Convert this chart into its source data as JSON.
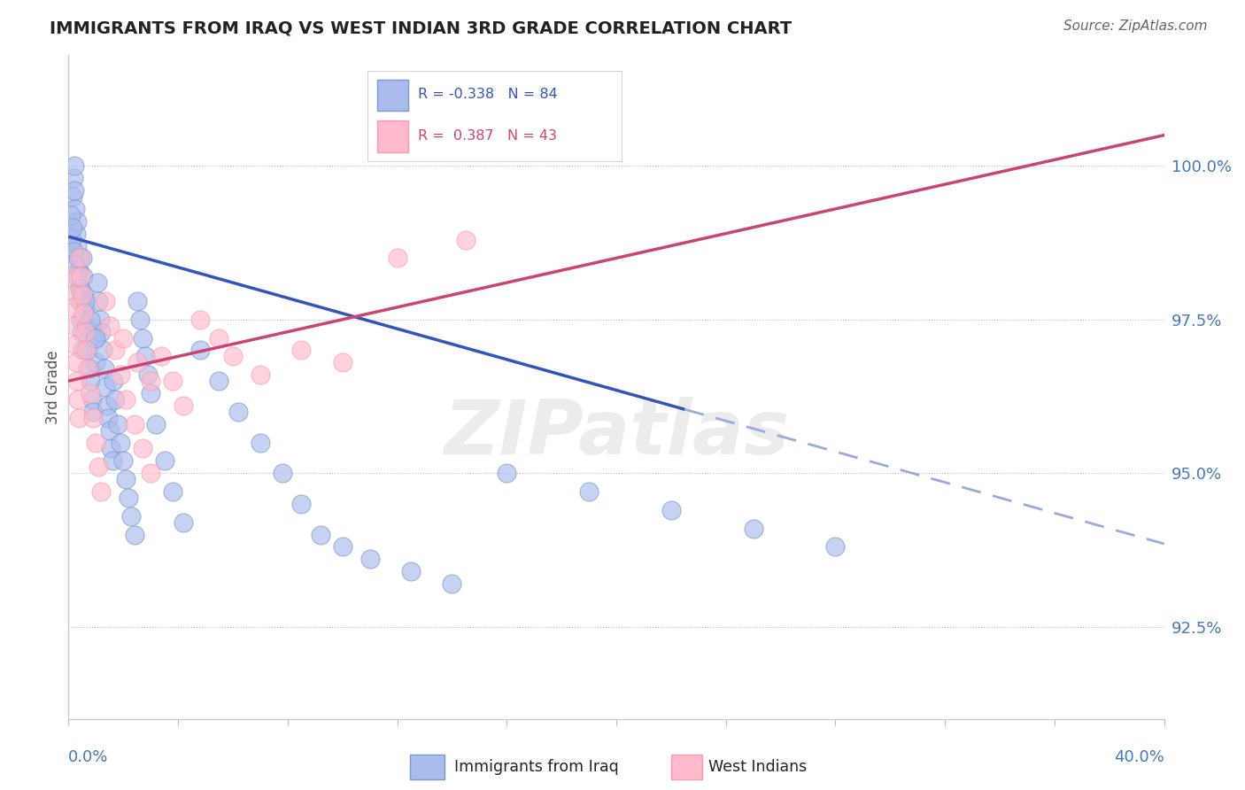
{
  "title": "IMMIGRANTS FROM IRAQ VS WEST INDIAN 3RD GRADE CORRELATION CHART",
  "source": "Source: ZipAtlas.com",
  "ylabel": "3rd Grade",
  "yticks": [
    92.5,
    95.0,
    97.5,
    100.0
  ],
  "ytick_labels": [
    "92.5%",
    "95.0%",
    "97.5%",
    "100.0%"
  ],
  "xmin": 0.0,
  "xmax": 40.0,
  "ymin": 91.0,
  "ymax": 101.8,
  "watermark": "ZIPatlas",
  "iraq_color_face": "#AABBEE",
  "iraq_color_edge": "#7799CC",
  "wi_color_face": "#FFBBCC",
  "wi_color_edge": "#FF99AA",
  "iraq_R": "-0.338",
  "iraq_N": "84",
  "wi_R": "0.387",
  "wi_N": "43",
  "iraq_legend_label": "Immigrants from Iraq",
  "wi_legend_label": "West Indians",
  "iraq_trend_color": "#3355BB",
  "iraq_trend_dash_color": "#99AADD",
  "wi_trend_color": "#CC4477",
  "iraq_x": [
    0.15,
    0.18,
    0.2,
    0.22,
    0.25,
    0.28,
    0.3,
    0.32,
    0.35,
    0.38,
    0.4,
    0.42,
    0.45,
    0.48,
    0.5,
    0.52,
    0.55,
    0.58,
    0.6,
    0.65,
    0.7,
    0.75,
    0.8,
    0.85,
    0.9,
    0.95,
    1.0,
    1.05,
    1.1,
    1.15,
    1.2,
    1.25,
    1.3,
    1.35,
    1.4,
    1.45,
    1.5,
    1.55,
    1.6,
    1.65,
    1.7,
    1.8,
    1.9,
    2.0,
    2.1,
    2.2,
    2.3,
    2.4,
    2.5,
    2.6,
    2.7,
    2.8,
    2.9,
    3.0,
    3.2,
    3.5,
    3.8,
    4.2,
    4.8,
    5.5,
    6.2,
    7.0,
    7.8,
    8.5,
    9.2,
    10.0,
    11.0,
    12.5,
    14.0,
    16.0,
    19.0,
    22.0,
    25.0,
    28.0,
    0.1,
    0.12,
    0.15,
    0.18,
    0.22,
    0.3,
    0.4,
    0.6,
    0.8,
    1.0
  ],
  "iraq_y": [
    99.5,
    99.8,
    100.0,
    99.6,
    99.3,
    98.9,
    99.1,
    98.7,
    98.5,
    98.3,
    98.0,
    97.8,
    97.5,
    97.3,
    97.0,
    98.5,
    98.2,
    97.9,
    97.7,
    97.4,
    97.0,
    96.7,
    96.5,
    96.2,
    96.0,
    97.2,
    96.8,
    98.1,
    97.8,
    97.5,
    97.3,
    97.0,
    96.7,
    96.4,
    96.1,
    95.9,
    95.7,
    95.4,
    95.2,
    96.5,
    96.2,
    95.8,
    95.5,
    95.2,
    94.9,
    94.6,
    94.3,
    94.0,
    97.8,
    97.5,
    97.2,
    96.9,
    96.6,
    96.3,
    95.8,
    95.2,
    94.7,
    94.2,
    97.0,
    96.5,
    96.0,
    95.5,
    95.0,
    94.5,
    94.0,
    93.8,
    93.6,
    93.4,
    93.2,
    95.0,
    94.7,
    94.4,
    94.1,
    93.8,
    99.2,
    98.8,
    99.0,
    98.6,
    98.4,
    98.2,
    98.0,
    97.8,
    97.5,
    97.2
  ],
  "wi_x": [
    0.12,
    0.15,
    0.18,
    0.22,
    0.25,
    0.28,
    0.32,
    0.35,
    0.38,
    0.42,
    0.45,
    0.5,
    0.55,
    0.6,
    0.65,
    0.7,
    0.8,
    0.9,
    1.0,
    1.1,
    1.2,
    1.35,
    1.5,
    1.7,
    1.9,
    2.1,
    2.4,
    2.7,
    3.0,
    3.4,
    3.8,
    4.2,
    4.8,
    5.5,
    6.0,
    7.0,
    8.5,
    10.0,
    12.0,
    14.5,
    2.0,
    2.5,
    3.0
  ],
  "wi_y": [
    98.2,
    97.9,
    97.7,
    97.4,
    97.1,
    96.8,
    96.5,
    96.2,
    95.9,
    98.5,
    98.2,
    97.9,
    97.6,
    97.3,
    97.0,
    96.7,
    96.3,
    95.9,
    95.5,
    95.1,
    94.7,
    97.8,
    97.4,
    97.0,
    96.6,
    96.2,
    95.8,
    95.4,
    95.0,
    96.9,
    96.5,
    96.1,
    97.5,
    97.2,
    96.9,
    96.6,
    97.0,
    96.8,
    98.5,
    98.8,
    97.2,
    96.8,
    96.5
  ],
  "iraq_trend_x0": 0.0,
  "iraq_trend_y0": 98.85,
  "iraq_trend_x1": 40.0,
  "iraq_trend_y1": 93.85,
  "iraq_solid_end_x": 22.5,
  "wi_trend_x0": 0.0,
  "wi_trend_y0": 96.5,
  "wi_trend_x1": 40.0,
  "wi_trend_y1": 100.5
}
